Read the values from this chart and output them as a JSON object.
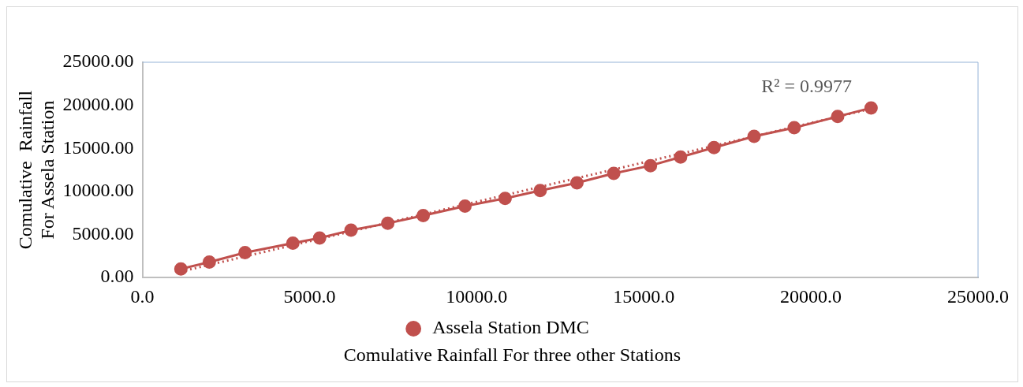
{
  "chart_data": {
    "type": "line",
    "xlabel": "Comulative Rainfall For three other Stations",
    "ylabel": "Comulative  Rainfall For Assela Station",
    "series": [
      {
        "name": "Assela Station DMC",
        "color": "#c0504d",
        "marker": "circle",
        "line_style": "solid",
        "x": [
          1150,
          2000,
          3070,
          4500,
          5300,
          6240,
          7340,
          8400,
          9650,
          10850,
          11900,
          13000,
          14100,
          15200,
          16100,
          17100,
          18300,
          19500,
          20800,
          21800
        ],
        "values": [
          1000,
          1800,
          2900,
          4000,
          4600,
          5500,
          6300,
          7200,
          8300,
          9200,
          10100,
          11000,
          12100,
          13000,
          14000,
          15100,
          16400,
          17400,
          18700,
          19700
        ]
      },
      {
        "type": "line",
        "color": "#c0504d",
        "line_style": "dotted",
        "x": [
          1150,
          21800
        ],
        "values": [
          700,
          19600
        ]
      }
    ],
    "annotations": [
      "R² = 0.9977"
    ],
    "xlim": [
      0,
      25000
    ],
    "xticks": [
      {
        "value": 0,
        "label": "0.0"
      },
      {
        "value": 5000,
        "label": "5000.0"
      },
      {
        "value": 10000,
        "label": "10000.0"
      },
      {
        "value": 15000,
        "label": "15000.0"
      },
      {
        "value": 20000,
        "label": "20000.0"
      },
      {
        "value": 25000,
        "label": "25000.0"
      }
    ],
    "ylim": [
      0,
      25000
    ],
    "yticks": [
      {
        "value": 0,
        "label": "0.00"
      },
      {
        "value": 5000,
        "label": "5000.00"
      },
      {
        "value": 10000,
        "label": "10000.00"
      },
      {
        "value": 15000,
        "label": "15000.00"
      },
      {
        "value": 20000,
        "label": "20000.00"
      },
      {
        "value": 25000,
        "label": "25000.00"
      }
    ],
    "grid": false,
    "legend": "bottom"
  }
}
